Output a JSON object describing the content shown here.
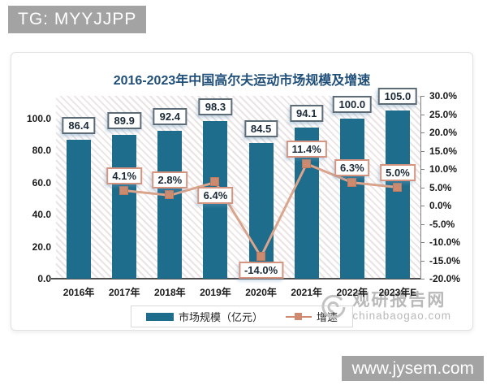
{
  "overlays": {
    "tg_badge": "TG: MYYJJPP",
    "site_badge": "www.jysem.com"
  },
  "watermark": {
    "name": "观研报告网",
    "domain": "chinabaogao.com"
  },
  "chart_data": {
    "type": "bar",
    "subtype": "bar-line-combo",
    "title": "2016-2023年中国高尔夫运动市场规模及增速",
    "categories": [
      "2016年",
      "2017年",
      "2018年",
      "2019年",
      "2020年",
      "2021年",
      "2022年",
      "2023年E"
    ],
    "series": [
      {
        "name": "市场规模（亿元）",
        "type": "bar",
        "axis": "left",
        "values": [
          86.4,
          89.9,
          92.4,
          98.3,
          84.5,
          94.1,
          100.0,
          105.0
        ],
        "labels": [
          "86.4",
          "89.9",
          "92.4",
          "98.3",
          "84.5",
          "94.1",
          "100.0",
          "105.0"
        ],
        "color": "#1e6d8c"
      },
      {
        "name": "增速",
        "type": "line",
        "axis": "right",
        "values": [
          null,
          4.1,
          2.8,
          6.4,
          -14.0,
          11.4,
          6.3,
          5.0
        ],
        "labels": [
          null,
          "4.1%",
          "2.8%",
          "6.4%",
          "-14.0%",
          "11.4%",
          "6.3%",
          "5.0%"
        ],
        "label_positions": [
          null,
          "above",
          "above",
          "below",
          "below",
          "above",
          "above",
          "above"
        ],
        "color": "#cd8a6e"
      }
    ],
    "left_axis": {
      "min": 0,
      "max": 114,
      "tick_values": [
        0,
        20,
        40,
        60,
        80,
        100
      ],
      "tick_labels": [
        "0.0",
        "20.0",
        "40.0",
        "60.0",
        "80.0",
        "100.0"
      ]
    },
    "right_axis": {
      "min": -20,
      "max": 30,
      "tick_values": [
        30,
        25,
        20,
        15,
        10,
        5,
        0,
        -5,
        -10,
        -15,
        -20
      ],
      "tick_labels": [
        "30.0%",
        "25.0%",
        "20.0%",
        "15.0%",
        "10.0%",
        "5.0%",
        "0.0%",
        "-5.0%",
        "-10.0%",
        "-15.0%",
        "-20.0%"
      ]
    },
    "legend": {
      "position": "bottom",
      "entries": [
        "市场规模（亿元）",
        "增速"
      ]
    },
    "grid": false,
    "plot_background": "diagonal-hatch",
    "colors": {
      "title": "#1f4e79",
      "bar": "#1e6d8c",
      "line": "#cd8a6e",
      "value_box_border": "#5d6b77",
      "pct_box_border": "#d49480"
    }
  }
}
